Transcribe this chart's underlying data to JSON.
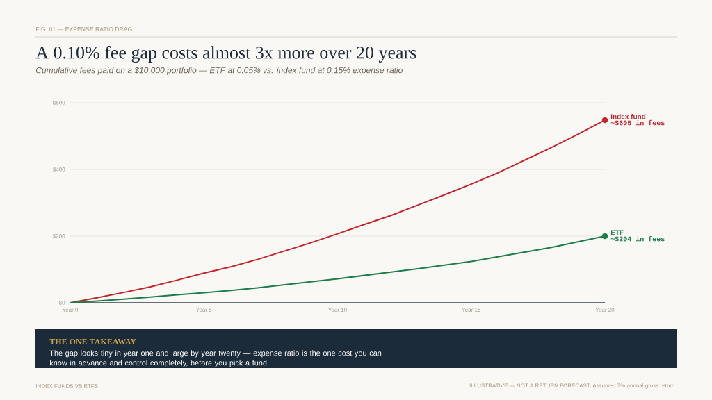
{
  "chart_data": {
    "type": "line",
    "title": "A 0.10% fee gap costs almost 3x more over 20 years",
    "subtitle": "Cumulative fees paid on a $10,000 portfolio — ETF at 0.05% vs. index fund at 0.15% expense ratio",
    "categories": [
      "Year 0",
      null,
      null,
      null,
      null,
      "Year 5",
      null,
      null,
      null,
      null,
      "Year 10",
      null,
      null,
      null,
      null,
      "Year 15",
      null,
      null,
      null,
      null,
      "Year 20"
    ],
    "series": [
      {
        "name": "Index fund",
        "color": "#c0272d",
        "values": [
          0,
          15,
          31,
          48,
          68,
          89,
          108,
          130,
          155,
          180,
          207,
          235,
          262,
          293,
          324,
          356,
          390,
          428,
          466,
          506,
          548
        ]
      },
      {
        "name": "ETF",
        "color": "#1e7b4a",
        "values": [
          0,
          5,
          11,
          17,
          24,
          30,
          37,
          45,
          54,
          63,
          72,
          82,
          92,
          102,
          113,
          124,
          138,
          152,
          166,
          183,
          200
        ]
      }
    ],
    "ylim": [
      0,
      600
    ],
    "yticks": [
      {
        "value": 0,
        "label": "$0"
      },
      {
        "value": 200,
        "label": "$200"
      },
      {
        "value": 400,
        "label": "$400"
      },
      {
        "value": 600,
        "label": "$600"
      }
    ],
    "grid": "y",
    "annotations": [
      "FIG. 01 — EXPENSE RATIO DRAG",
      "~$605 in fees",
      "~$204 in fees",
      "THE ONE TAKEAWAY",
      "The gap looks tiny in year one and large by year twenty — expense ratio is the one cost you can know in advance and control completely, before you pick a fund.",
      "INDEX FUNDS VS ETFS",
      "ILLUSTRATIVE — NOT A RETURN FORECAST. Assumed 7% annual gross return."
    ]
  }
}
